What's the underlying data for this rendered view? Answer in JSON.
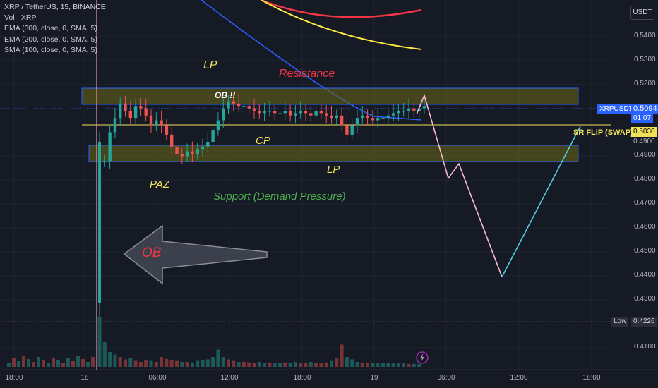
{
  "legend": {
    "symbol": "XRP / TetherUS, 15, BINANCE",
    "volume": "Vol · XRP",
    "ema300": "EMA (300, close, 0, SMA, 5)",
    "ema200": "EMA (200, close, 0, SMA, 5)",
    "sma100": "SMA (100, close, 0, SMA, 5)"
  },
  "axis": {
    "currency_button": "USDT",
    "price_ticks": [
      "0.5400",
      "0.5300",
      "0.5200",
      "0.4900",
      "0.4800",
      "0.4700",
      "0.4600",
      "0.4500",
      "0.4400",
      "0.4300",
      "0.4100"
    ],
    "time_ticks": [
      "18:00",
      "18",
      "06:00",
      "12:00",
      "18:00",
      "19",
      "06:00",
      "12:00",
      "18:00"
    ]
  },
  "price_labels": {
    "symbol_tag": "XRPUSDT",
    "last_price": "0.5094",
    "countdown": "01:07",
    "hline_price": "0.5030",
    "hline_price_2": "0.4900",
    "low_label": "Low",
    "low_value": "0.4226"
  },
  "annotations": {
    "lp_top": "LP",
    "resistance": "Resistance",
    "ob_small": "OB !!",
    "cp": "CP",
    "paz": "PAZ",
    "lp_bottom": "LP",
    "support": "Support (Demand Pressure)",
    "ob_arrow": "OB",
    "sr_flip": "SR FLIP (SWAP)"
  },
  "colors": {
    "background": "#161a25",
    "bull": "#26a69a",
    "bear": "#ef5350",
    "zone_fill": "#5c5a1a",
    "zone_border": "#2962ff",
    "ema300": "#f23645",
    "ema200": "#ffeb3b",
    "sma100": "#2962ff",
    "projection_down": "#f8bbd0",
    "projection_up": "#4dd0e1"
  },
  "chart_data": {
    "type": "candlestick",
    "symbol": "XRP / TetherUS",
    "timeframe": "15",
    "exchange": "BINANCE",
    "y_range": [
      0.405,
      0.548
    ],
    "resistance_zone": [
      0.5115,
      0.5185
    ],
    "support_zone": [
      0.4875,
      0.4945
    ],
    "horizontal_line": 0.503,
    "last_price": 0.5094,
    "low": 0.4226,
    "close": [
      0.488,
      0.5,
      0.506,
      0.512,
      0.509,
      0.506,
      0.511,
      0.51,
      0.507,
      0.503,
      0.505,
      0.503,
      0.499,
      0.494,
      0.491,
      0.49,
      0.492,
      0.491,
      0.493,
      0.494,
      0.496,
      0.501,
      0.505,
      0.51,
      0.513,
      0.512,
      0.511,
      0.511,
      0.51,
      0.509,
      0.508,
      0.509,
      0.509,
      0.508,
      0.508,
      0.509,
      0.507,
      0.508,
      0.509,
      0.508,
      0.507,
      0.509,
      0.508,
      0.507,
      0.506,
      0.507,
      0.503,
      0.499,
      0.503,
      0.506,
      0.507,
      0.506,
      0.505,
      0.506,
      0.506,
      0.507,
      0.508,
      0.509,
      0.509,
      0.51,
      0.509,
      0.51,
      0.511
    ],
    "volume_relative": [
      1.0,
      0.5,
      0.3,
      0.25,
      0.2,
      0.15,
      0.18,
      0.12,
      0.1,
      0.14,
      0.12,
      0.1,
      0.2,
      0.16,
      0.13,
      0.12,
      0.1,
      0.1,
      0.09,
      0.12,
      0.14,
      0.15,
      0.2,
      0.35,
      0.2,
      0.15,
      0.12,
      0.1,
      0.1,
      0.09,
      0.08,
      0.1,
      0.08,
      0.09,
      0.08,
      0.08,
      0.09,
      0.08,
      0.1,
      0.07,
      0.08,
      0.1,
      0.08,
      0.07,
      0.09,
      0.12,
      0.18,
      0.45,
      0.2,
      0.15,
      0.1,
      0.09,
      0.08,
      0.08,
      0.07,
      0.08,
      0.08,
      0.07,
      0.07,
      0.07,
      0.06,
      0.06,
      0.06
    ],
    "projection_path": [
      0.5154,
      0.4808,
      0.4868,
      0.4395,
      0.5025
    ],
    "ema300": [
      0.555,
      0.549
    ],
    "ema200": [
      0.548,
      0.5338
    ],
    "sma100": [
      0.548,
      0.5055
    ]
  }
}
